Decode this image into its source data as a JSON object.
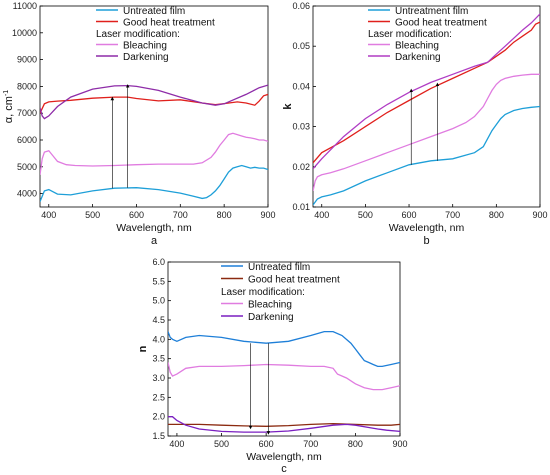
{
  "chart_data": [
    {
      "type": "line",
      "panel_label": "a",
      "xlabel": "Wavelength, nm",
      "ylabel": "α, cm",
      "ylabel_sup": "-1",
      "xlim": [
        380,
        900
      ],
      "ylim": [
        3500,
        11000
      ],
      "xticks": [
        400,
        500,
        600,
        700,
        800,
        900
      ],
      "yticks": [
        4000,
        5000,
        6000,
        7000,
        8000,
        9000,
        10000,
        11000
      ],
      "legend": {
        "position": "top-center",
        "entries": [
          {
            "label": "Untreated film",
            "series": 0
          },
          {
            "label": "Good heat treatment",
            "series": 1
          },
          {
            "header": "Laser modification:"
          },
          {
            "label": "Bleaching",
            "series": 2
          },
          {
            "label": "Darkening",
            "series": 3
          }
        ]
      },
      "series": [
        {
          "color": "#1e9fd8",
          "x": [
            380,
            390,
            400,
            420,
            450,
            500,
            550,
            600,
            650,
            700,
            730,
            750,
            760,
            770,
            780,
            790,
            800,
            810,
            820,
            830,
            840,
            850,
            860,
            870,
            880,
            890,
            900
          ],
          "y": [
            3700,
            4100,
            4150,
            3980,
            3950,
            4100,
            4200,
            4220,
            4150,
            4020,
            3900,
            3820,
            3850,
            3950,
            4100,
            4300,
            4550,
            4800,
            4950,
            5000,
            5050,
            5000,
            4950,
            4980,
            4950,
            4950,
            4900
          ]
        },
        {
          "color": "#e0201c",
          "x": [
            380,
            390,
            400,
            420,
            450,
            500,
            550,
            580,
            600,
            650,
            700,
            750,
            780,
            800,
            830,
            850,
            870,
            880,
            890,
            900
          ],
          "y": [
            7000,
            7350,
            7420,
            7450,
            7480,
            7560,
            7600,
            7600,
            7550,
            7460,
            7500,
            7380,
            7320,
            7360,
            7420,
            7380,
            7300,
            7450,
            7650,
            7700
          ]
        },
        {
          "color": "#e07ce0",
          "x": [
            380,
            385,
            390,
            400,
            410,
            420,
            440,
            460,
            500,
            550,
            600,
            650,
            700,
            730,
            750,
            770,
            780,
            790,
            800,
            810,
            820,
            830,
            840,
            850,
            860,
            870,
            880,
            890,
            900
          ],
          "y": [
            4700,
            5300,
            5550,
            5600,
            5400,
            5200,
            5080,
            5050,
            5030,
            5050,
            5080,
            5100,
            5100,
            5100,
            5150,
            5350,
            5550,
            5800,
            6000,
            6200,
            6250,
            6200,
            6150,
            6100,
            6080,
            6050,
            6000,
            6000,
            5950
          ]
        },
        {
          "color": "#8e2ca8",
          "x": [
            380,
            385,
            390,
            400,
            420,
            450,
            500,
            550,
            580,
            600,
            650,
            700,
            750,
            780,
            800,
            850,
            880,
            900
          ],
          "y": [
            7200,
            6900,
            6800,
            6900,
            7250,
            7600,
            7900,
            8020,
            8030,
            8000,
            7850,
            7600,
            7380,
            7300,
            7350,
            7700,
            7950,
            8050
          ]
        }
      ],
      "annotations": [
        {
          "type": "arrow",
          "x": 545,
          "from": 4200,
          "to": 7550
        },
        {
          "type": "arrow",
          "x": 580,
          "from": 4220,
          "to": 8020
        }
      ]
    },
    {
      "type": "line",
      "panel_label": "b",
      "xlabel": "Wavelength, nm",
      "ylabel": "k",
      "xlim": [
        380,
        900
      ],
      "ylim": [
        0.01,
        0.06
      ],
      "xticks": [
        400,
        500,
        600,
        700,
        800,
        900
      ],
      "yticks": [
        0.01,
        0.02,
        0.03,
        0.04,
        0.05,
        0.06
      ],
      "legend": {
        "position": "top-center",
        "entries": [
          {
            "label": "Untreatment film",
            "series": 0
          },
          {
            "label": "Good heat treatment",
            "series": 1
          },
          {
            "header": "Laser modification:"
          },
          {
            "label": "Bleaching",
            "series": 2
          },
          {
            "label": "Darkening",
            "series": 3
          }
        ]
      },
      "series": [
        {
          "color": "#1e9fd8",
          "x": [
            380,
            390,
            400,
            420,
            450,
            500,
            550,
            600,
            650,
            700,
            750,
            770,
            780,
            790,
            800,
            810,
            820,
            840,
            860,
            880,
            900
          ],
          "y": [
            0.0105,
            0.012,
            0.0125,
            0.013,
            0.014,
            0.0165,
            0.0185,
            0.0205,
            0.0215,
            0.022,
            0.0235,
            0.025,
            0.027,
            0.029,
            0.0305,
            0.032,
            0.033,
            0.034,
            0.0345,
            0.0348,
            0.035
          ]
        },
        {
          "color": "#e0201c",
          "x": [
            380,
            400,
            450,
            500,
            550,
            600,
            650,
            700,
            750,
            780,
            800,
            820,
            840,
            860,
            880,
            890,
            900
          ],
          "y": [
            0.021,
            0.0235,
            0.0265,
            0.03,
            0.0335,
            0.0365,
            0.0395,
            0.042,
            0.0445,
            0.046,
            0.0475,
            0.049,
            0.051,
            0.0525,
            0.054,
            0.0555,
            0.056
          ]
        },
        {
          "color": "#e07ce0",
          "x": [
            380,
            385,
            390,
            400,
            420,
            450,
            500,
            550,
            600,
            650,
            700,
            730,
            750,
            770,
            780,
            790,
            800,
            810,
            820,
            840,
            860,
            880,
            900
          ],
          "y": [
            0.014,
            0.0165,
            0.0175,
            0.018,
            0.0185,
            0.0195,
            0.0215,
            0.0235,
            0.0255,
            0.0275,
            0.0295,
            0.031,
            0.0325,
            0.035,
            0.037,
            0.039,
            0.0405,
            0.0415,
            0.042,
            0.0425,
            0.0428,
            0.043,
            0.043
          ]
        },
        {
          "color": "#b03cc4",
          "x": [
            380,
            400,
            450,
            500,
            550,
            600,
            650,
            700,
            750,
            780,
            800,
            820,
            840,
            860,
            880,
            900
          ],
          "y": [
            0.0195,
            0.022,
            0.0275,
            0.032,
            0.0355,
            0.0385,
            0.041,
            0.043,
            0.045,
            0.046,
            0.048,
            0.05,
            0.052,
            0.054,
            0.0558,
            0.058
          ]
        }
      ],
      "annotations": [
        {
          "type": "arrow",
          "x": 605,
          "from": 0.0205,
          "to": 0.039
        },
        {
          "type": "arrow",
          "x": 665,
          "from": 0.0215,
          "to": 0.0405
        }
      ]
    },
    {
      "type": "line",
      "panel_label": "c",
      "xlabel": "Wavelength, nm",
      "ylabel": "n",
      "xlim": [
        380,
        900
      ],
      "ylim": [
        1.5,
        6.0
      ],
      "xticks": [
        400,
        500,
        600,
        700,
        800,
        900
      ],
      "yticks": [
        1.5,
        2.0,
        2.5,
        3.0,
        3.5,
        4.0,
        4.5,
        5.0,
        5.5,
        6.0
      ],
      "legend": {
        "position": "top-center",
        "entries": [
          {
            "label": "Untreated film",
            "series": 0
          },
          {
            "label": "Good heat treatment",
            "series": 1
          },
          {
            "header": "Laser modification:"
          },
          {
            "label": "Bleaching",
            "series": 2
          },
          {
            "label": "Darkening",
            "series": 3
          }
        ]
      },
      "series": [
        {
          "color": "#1e7fd8",
          "x": [
            380,
            385,
            390,
            400,
            420,
            450,
            500,
            550,
            600,
            650,
            700,
            730,
            750,
            770,
            790,
            800,
            810,
            820,
            830,
            840,
            850,
            860,
            880,
            900
          ],
          "y": [
            4.2,
            4.05,
            4.0,
            3.95,
            4.05,
            4.1,
            4.05,
            3.95,
            3.9,
            3.95,
            4.1,
            4.2,
            4.2,
            4.1,
            3.9,
            3.75,
            3.6,
            3.45,
            3.4,
            3.35,
            3.3,
            3.3,
            3.35,
            3.4
          ]
        },
        {
          "color": "#8b2a10",
          "x": [
            380,
            390,
            400,
            450,
            500,
            550,
            600,
            650,
            700,
            750,
            800,
            850,
            880,
            900
          ],
          "y": [
            1.8,
            1.8,
            1.8,
            1.8,
            1.78,
            1.76,
            1.75,
            1.77,
            1.8,
            1.82,
            1.8,
            1.78,
            1.78,
            1.8
          ]
        },
        {
          "color": "#e07ce0",
          "x": [
            380,
            385,
            390,
            400,
            420,
            450,
            500,
            550,
            600,
            650,
            700,
            730,
            750,
            760,
            780,
            800,
            820,
            840,
            860,
            880,
            900
          ],
          "y": [
            3.4,
            3.15,
            3.05,
            3.1,
            3.25,
            3.3,
            3.3,
            3.32,
            3.35,
            3.33,
            3.3,
            3.3,
            3.25,
            3.1,
            3.0,
            2.85,
            2.75,
            2.7,
            2.7,
            2.75,
            2.8
          ]
        },
        {
          "color": "#7a1fc0",
          "x": [
            380,
            390,
            400,
            420,
            450,
            500,
            550,
            600,
            650,
            700,
            750,
            780,
            800,
            830,
            850,
            870,
            900
          ],
          "y": [
            2.0,
            2.0,
            1.9,
            1.78,
            1.68,
            1.62,
            1.6,
            1.6,
            1.63,
            1.7,
            1.78,
            1.8,
            1.78,
            1.72,
            1.68,
            1.65,
            1.62
          ]
        }
      ],
      "annotations": [
        {
          "type": "arrow",
          "x": 565,
          "from": 3.9,
          "to": 1.72
        },
        {
          "type": "arrow",
          "x": 605,
          "from": 3.9,
          "to": 1.58
        }
      ]
    }
  ]
}
